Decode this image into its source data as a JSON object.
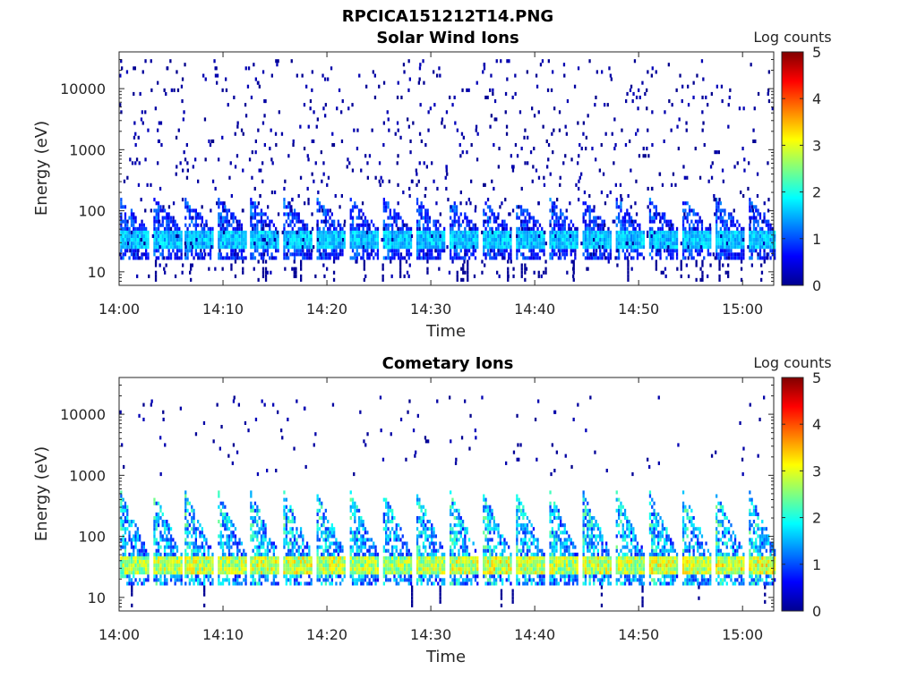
{
  "figure": {
    "title": "RPCICA151212T14.PNG"
  },
  "colors": {
    "axis": "#262626",
    "background": "#ffffff",
    "colormap": "jet"
  },
  "chart_data": [
    {
      "type": "heatmap",
      "title": "Solar Wind Ions",
      "xlabel": "Time",
      "ylabel": "Energy (eV)",
      "xlim": [
        "14:00",
        "15:03"
      ],
      "ylim": [
        6,
        40000
      ],
      "yscale": "log",
      "x_ticks": [
        "14:00",
        "14:10",
        "14:20",
        "14:30",
        "14:40",
        "14:50",
        "15:00"
      ],
      "y_ticks": [
        "10",
        "100",
        "1000",
        "10000"
      ],
      "colorbar": {
        "label": "Log counts",
        "range": [
          0,
          5
        ],
        "ticks": [
          "0",
          "1",
          "2",
          "3",
          "4",
          "5"
        ]
      },
      "sweep_period_min": 3.2,
      "bursts": [
        {
          "t_min": 0.1,
          "peak_log_counts": 1.9
        },
        {
          "t_min": 3.3,
          "peak_log_counts": 1.9
        },
        {
          "t_min": 6.3,
          "peak_log_counts": 1.9
        },
        {
          "t_min": 9.5,
          "peak_log_counts": 1.9
        },
        {
          "t_min": 12.6,
          "peak_log_counts": 1.9
        },
        {
          "t_min": 15.8,
          "peak_log_counts": 1.9
        },
        {
          "t_min": 19.0,
          "peak_log_counts": 1.9
        },
        {
          "t_min": 22.2,
          "peak_log_counts": 1.9
        },
        {
          "t_min": 25.4,
          "peak_log_counts": 1.9
        },
        {
          "t_min": 28.6,
          "peak_log_counts": 1.9
        },
        {
          "t_min": 31.8,
          "peak_log_counts": 1.9
        },
        {
          "t_min": 35.0,
          "peak_log_counts": 1.9
        },
        {
          "t_min": 38.2,
          "peak_log_counts": 1.9
        },
        {
          "t_min": 41.4,
          "peak_log_counts": 1.9
        },
        {
          "t_min": 44.6,
          "peak_log_counts": 1.9
        },
        {
          "t_min": 47.8,
          "peak_log_counts": 1.9
        },
        {
          "t_min": 51.0,
          "peak_log_counts": 1.9
        },
        {
          "t_min": 54.2,
          "peak_log_counts": 1.9
        },
        {
          "t_min": 57.4,
          "peak_log_counts": 1.9
        },
        {
          "t_min": 60.6,
          "peak_log_counts": 1.9
        }
      ],
      "band_energy_eV": [
        25,
        45
      ],
      "burst_top_energy_eV": 150,
      "background_noise": "sparse single counts (log counts ~0) from 8 eV to 30000 eV"
    },
    {
      "type": "heatmap",
      "title": "Cometary Ions",
      "xlabel": "Time",
      "ylabel": "Energy (eV)",
      "xlim": [
        "14:00",
        "15:03"
      ],
      "ylim": [
        6,
        40000
      ],
      "yscale": "log",
      "x_ticks": [
        "14:00",
        "14:10",
        "14:20",
        "14:30",
        "14:40",
        "14:50",
        "15:00"
      ],
      "y_ticks": [
        "10",
        "100",
        "1000",
        "10000"
      ],
      "colorbar": {
        "label": "Log counts",
        "range": [
          0,
          5
        ],
        "ticks": [
          "0",
          "1",
          "2",
          "3",
          "4",
          "5"
        ]
      },
      "sweep_period_min": 3.2,
      "bursts": [
        {
          "t_min": 0.1,
          "peak_log_counts": 3.2
        },
        {
          "t_min": 3.3,
          "peak_log_counts": 3.3
        },
        {
          "t_min": 6.3,
          "peak_log_counts": 3.4
        },
        {
          "t_min": 9.5,
          "peak_log_counts": 3.3
        },
        {
          "t_min": 12.6,
          "peak_log_counts": 3.4
        },
        {
          "t_min": 15.8,
          "peak_log_counts": 3.5
        },
        {
          "t_min": 19.0,
          "peak_log_counts": 3.4
        },
        {
          "t_min": 22.2,
          "peak_log_counts": 3.3
        },
        {
          "t_min": 25.4,
          "peak_log_counts": 3.2
        },
        {
          "t_min": 28.6,
          "peak_log_counts": 3.3
        },
        {
          "t_min": 31.8,
          "peak_log_counts": 3.4
        },
        {
          "t_min": 35.0,
          "peak_log_counts": 3.5
        },
        {
          "t_min": 38.2,
          "peak_log_counts": 3.4
        },
        {
          "t_min": 41.4,
          "peak_log_counts": 3.3
        },
        {
          "t_min": 44.6,
          "peak_log_counts": 3.4
        },
        {
          "t_min": 47.8,
          "peak_log_counts": 3.3
        },
        {
          "t_min": 51.0,
          "peak_log_counts": 3.5
        },
        {
          "t_min": 54.2,
          "peak_log_counts": 3.4
        },
        {
          "t_min": 57.4,
          "peak_log_counts": 3.5
        },
        {
          "t_min": 60.6,
          "peak_log_counts": 3.5
        }
      ],
      "band_energy_eV": [
        25,
        45
      ],
      "burst_top_energy_eV": 500,
      "background_noise": "sparse single counts (log counts ~0) between 1000 eV and 20000 eV"
    }
  ]
}
